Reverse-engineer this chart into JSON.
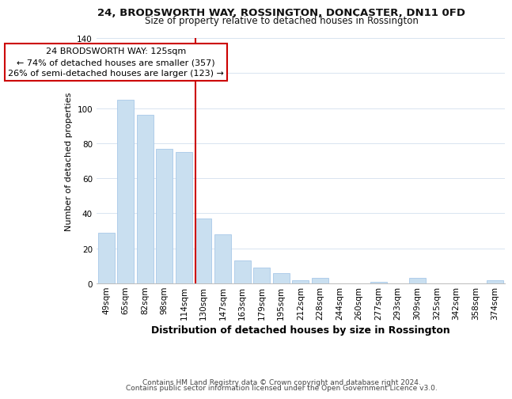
{
  "title1": "24, BRODSWORTH WAY, ROSSINGTON, DONCASTER, DN11 0FD",
  "title2": "Size of property relative to detached houses in Rossington",
  "xlabel": "Distribution of detached houses by size in Rossington",
  "ylabel": "Number of detached properties",
  "bar_labels": [
    "49sqm",
    "65sqm",
    "82sqm",
    "98sqm",
    "114sqm",
    "130sqm",
    "147sqm",
    "163sqm",
    "179sqm",
    "195sqm",
    "212sqm",
    "228sqm",
    "244sqm",
    "260sqm",
    "277sqm",
    "293sqm",
    "309sqm",
    "325sqm",
    "342sqm",
    "358sqm",
    "374sqm"
  ],
  "bar_heights": [
    29,
    105,
    96,
    77,
    75,
    37,
    28,
    13,
    9,
    6,
    2,
    3,
    0,
    0,
    1,
    0,
    3,
    0,
    0,
    0,
    2
  ],
  "bar_color": "#c9dff0",
  "bar_edge_color": "#a8c8e8",
  "red_line_index": 5,
  "annotation_title": "24 BRODSWORTH WAY: 125sqm",
  "annotation_line1": "← 74% of detached houses are smaller (357)",
  "annotation_line2": "26% of semi-detached houses are larger (123) →",
  "annotation_box_color": "#ffffff",
  "annotation_box_edge": "#cc0000",
  "red_line_color": "#cc0000",
  "ylim": [
    0,
    140
  ],
  "yticks": [
    0,
    20,
    40,
    60,
    80,
    100,
    120,
    140
  ],
  "footer1": "Contains HM Land Registry data © Crown copyright and database right 2024.",
  "footer2": "Contains public sector information licensed under the Open Government Licence v3.0.",
  "background_color": "#ffffff",
  "grid_color": "#d8e4f0",
  "title1_fontsize": 9.5,
  "title2_fontsize": 8.5,
  "xlabel_fontsize": 9,
  "ylabel_fontsize": 8,
  "tick_fontsize": 7.5,
  "annotation_fontsize": 8,
  "footer_fontsize": 6.5
}
